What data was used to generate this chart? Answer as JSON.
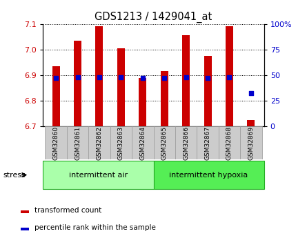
{
  "title": "GDS1213 / 1429041_at",
  "samples": [
    "GSM32860",
    "GSM32861",
    "GSM32862",
    "GSM32863",
    "GSM32864",
    "GSM32865",
    "GSM32866",
    "GSM32867",
    "GSM32868",
    "GSM32869"
  ],
  "red_values": [
    6.935,
    7.035,
    7.09,
    7.005,
    6.888,
    6.915,
    7.055,
    6.975,
    7.09,
    6.725
  ],
  "blue_percentiles": [
    47,
    48,
    48,
    48,
    47,
    47,
    48,
    47,
    48,
    32
  ],
  "ymin": 6.7,
  "ymax": 7.1,
  "y_ticks": [
    6.7,
    6.8,
    6.9,
    7.0,
    7.1
  ],
  "right_yticks": [
    0,
    25,
    50,
    75,
    100
  ],
  "bar_color": "#cc0000",
  "blue_color": "#0000cc",
  "group1_label": "intermittent air",
  "group2_label": "intermittent hypoxia",
  "legend_red": "transformed count",
  "legend_blue": "percentile rank within the sample",
  "stress_label": "stress",
  "group_bg1": "#aaffaa",
  "group_bg2": "#55ee55",
  "xlabel_bg": "#cccccc",
  "bar_width": 0.35,
  "plot_bg": "#ffffff"
}
